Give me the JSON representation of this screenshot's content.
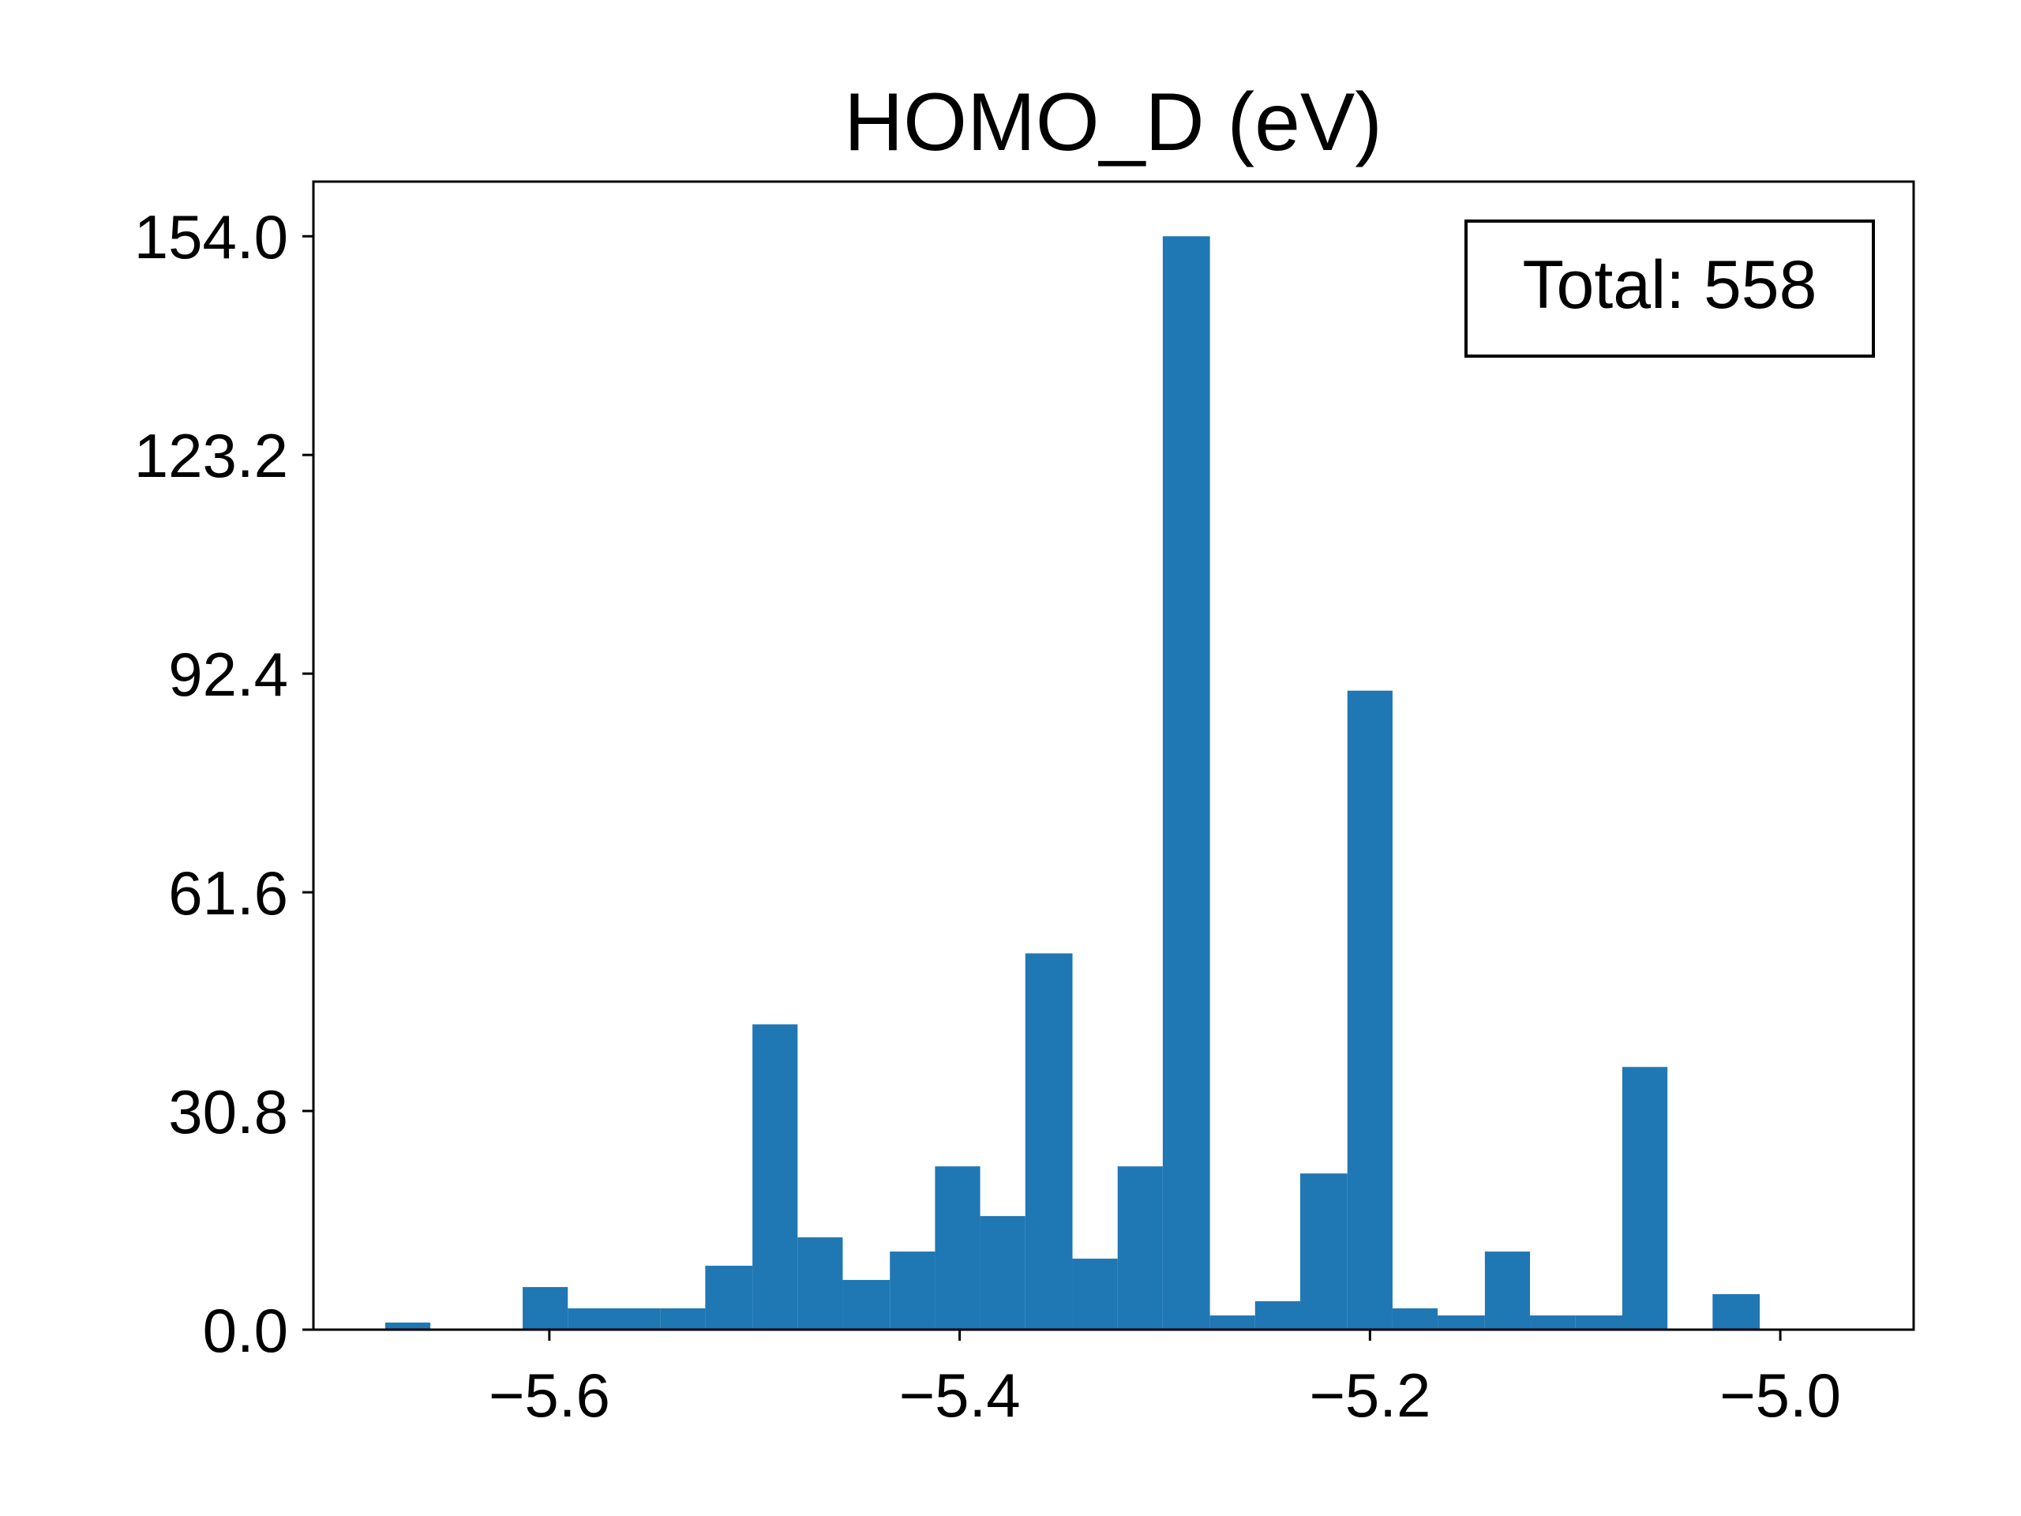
{
  "chart_data": {
    "type": "bar",
    "title": "HOMO_D (eV)",
    "xlabel": "",
    "ylabel": "",
    "bar_color": "#1f77b4",
    "xlim": [
      -5.715,
      -4.935
    ],
    "ylim": [
      0,
      161.7
    ],
    "x_ticks": [
      {
        "value": -5.6,
        "label": "−5.6"
      },
      {
        "value": -5.4,
        "label": "−5.4"
      },
      {
        "value": -5.2,
        "label": "−5.2"
      },
      {
        "value": -5.0,
        "label": "−5.0"
      }
    ],
    "y_ticks": [
      {
        "value": 0,
        "label": "0.0"
      },
      {
        "value": 30.8,
        "label": "30.8"
      },
      {
        "value": 61.6,
        "label": "61.6"
      },
      {
        "value": 92.4,
        "label": "92.4"
      },
      {
        "value": 123.2,
        "label": "123.2"
      },
      {
        "value": 154.0,
        "label": "154.0"
      }
    ],
    "bins": [
      {
        "start": -5.68,
        "end": -5.658,
        "count": 1
      },
      {
        "start": -5.658,
        "end": -5.635,
        "count": 0
      },
      {
        "start": -5.635,
        "end": -5.613,
        "count": 0
      },
      {
        "start": -5.613,
        "end": -5.591,
        "count": 6
      },
      {
        "start": -5.591,
        "end": -5.568,
        "count": 3
      },
      {
        "start": -5.568,
        "end": -5.546,
        "count": 3
      },
      {
        "start": -5.546,
        "end": -5.524,
        "count": 3
      },
      {
        "start": -5.524,
        "end": -5.501,
        "count": 9
      },
      {
        "start": -5.501,
        "end": -5.479,
        "count": 43
      },
      {
        "start": -5.479,
        "end": -5.457,
        "count": 13
      },
      {
        "start": -5.457,
        "end": -5.434,
        "count": 7
      },
      {
        "start": -5.434,
        "end": -5.412,
        "count": 11
      },
      {
        "start": -5.412,
        "end": -5.39,
        "count": 23
      },
      {
        "start": -5.39,
        "end": -5.368,
        "count": 16
      },
      {
        "start": -5.368,
        "end": -5.345,
        "count": 53
      },
      {
        "start": -5.345,
        "end": -5.323,
        "count": 10
      },
      {
        "start": -5.323,
        "end": -5.301,
        "count": 23
      },
      {
        "start": -5.301,
        "end": -5.278,
        "count": 154
      },
      {
        "start": -5.278,
        "end": -5.256,
        "count": 2
      },
      {
        "start": -5.256,
        "end": -5.234,
        "count": 4
      },
      {
        "start": -5.234,
        "end": -5.211,
        "count": 22
      },
      {
        "start": -5.211,
        "end": -5.189,
        "count": 90
      },
      {
        "start": -5.189,
        "end": -5.167,
        "count": 3
      },
      {
        "start": -5.167,
        "end": -5.144,
        "count": 2
      },
      {
        "start": -5.144,
        "end": -5.122,
        "count": 11
      },
      {
        "start": -5.122,
        "end": -5.1,
        "count": 2
      },
      {
        "start": -5.1,
        "end": -5.077,
        "count": 2
      },
      {
        "start": -5.077,
        "end": -5.055,
        "count": 37
      },
      {
        "start": -5.055,
        "end": -5.033,
        "count": 0
      },
      {
        "start": -5.033,
        "end": -5.01,
        "count": 5
      }
    ],
    "annotation": "Total: 558",
    "annotation_position": "top-right",
    "grid": false,
    "legend": "none"
  }
}
